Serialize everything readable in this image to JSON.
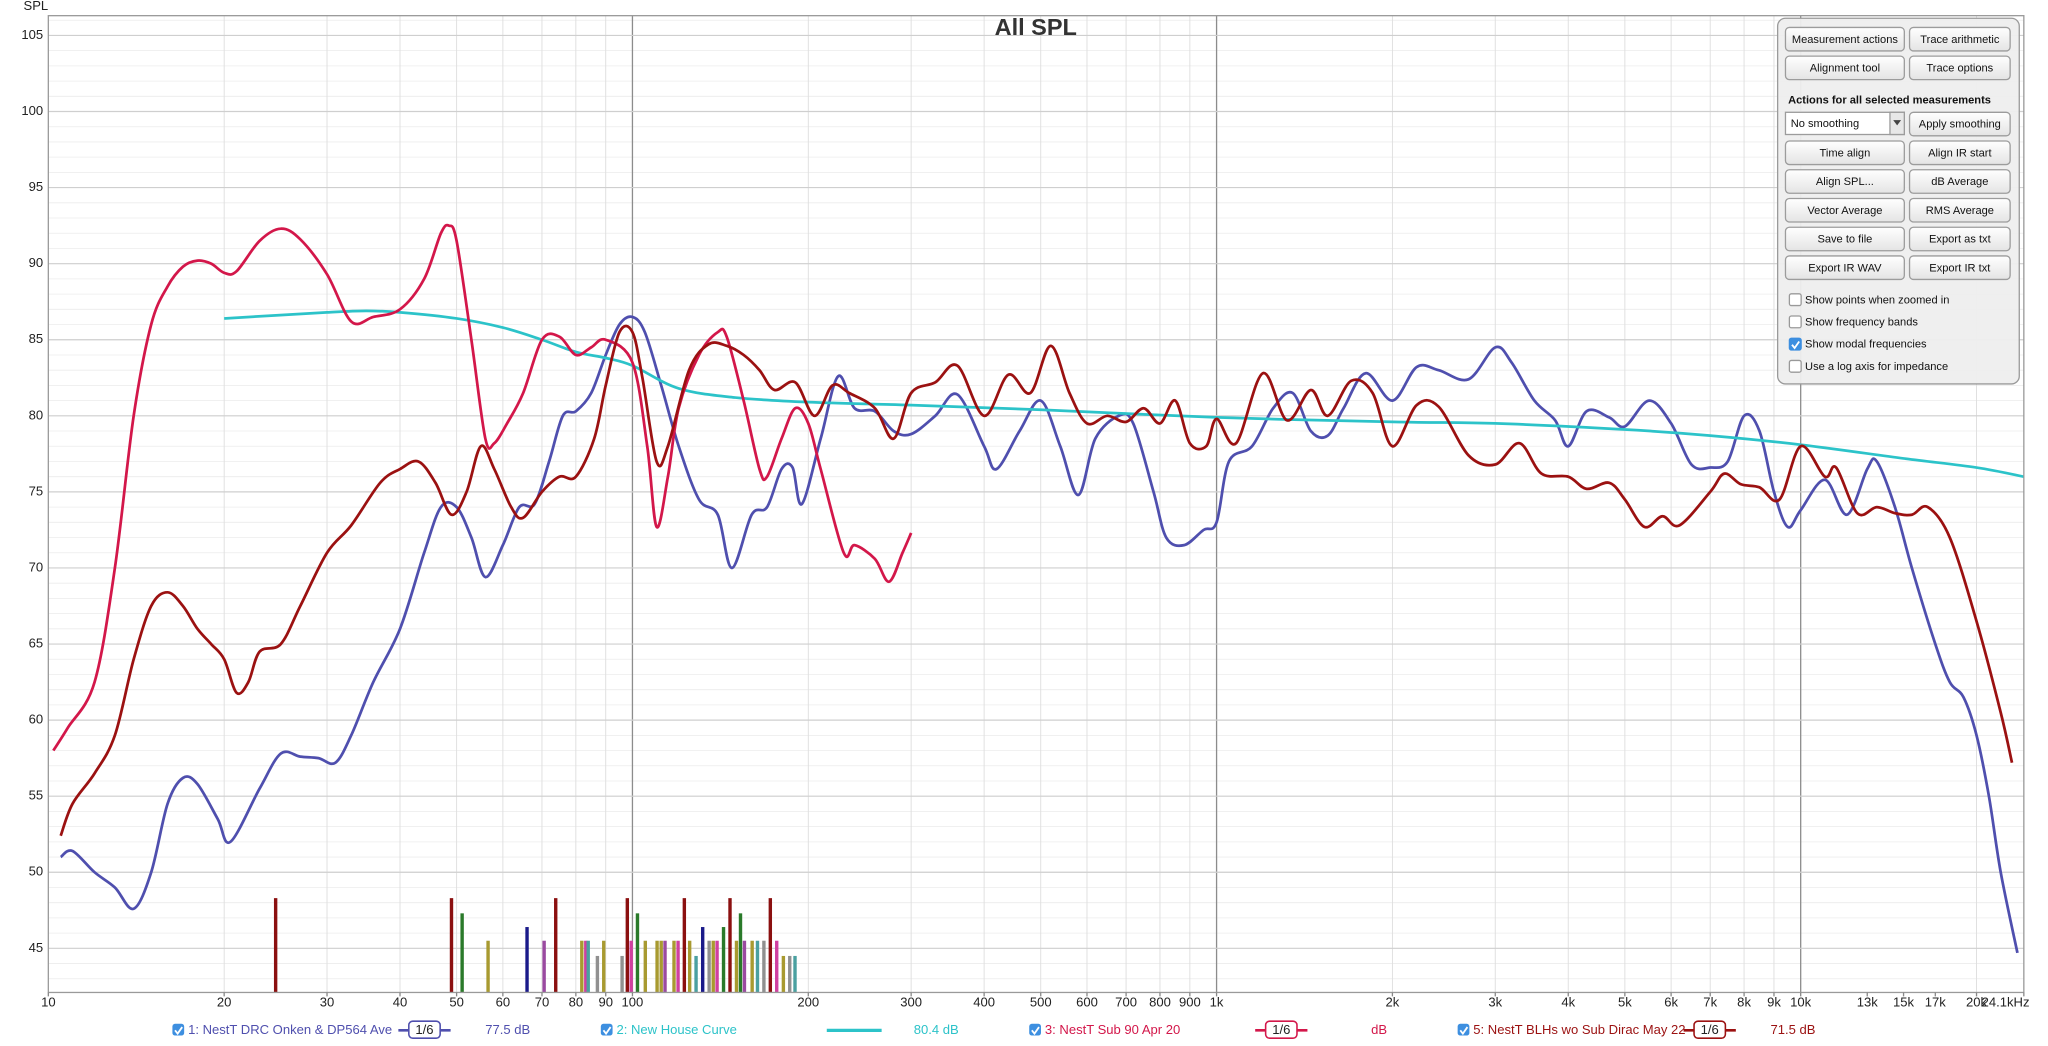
{
  "chart_data": {
    "type": "line",
    "title": "All SPL",
    "y_label": "SPL",
    "log_x": true,
    "grid": true,
    "xlim": [
      10,
      24100
    ],
    "ylim": [
      42.1,
      106.3
    ],
    "xticks": [
      10,
      20,
      30,
      40,
      50,
      60,
      70,
      80,
      90,
      100,
      200,
      300,
      400,
      500,
      600,
      700,
      800,
      900,
      {
        "value": 1000,
        "label": "1k"
      },
      {
        "value": 2000,
        "label": "2k"
      },
      {
        "value": 3000,
        "label": "3k"
      },
      {
        "value": 4000,
        "label": "4k"
      },
      {
        "value": 5000,
        "label": "5k"
      },
      {
        "value": 6000,
        "label": "6k"
      },
      {
        "value": 7000,
        "label": "7k"
      },
      {
        "value": 8000,
        "label": "8k"
      },
      {
        "value": 9000,
        "label": "9k"
      },
      {
        "value": 10000,
        "label": "10k"
      },
      {
        "value": 13000,
        "label": "13k"
      },
      {
        "value": 15000,
        "label": "15k"
      },
      {
        "value": 17000,
        "label": "17k"
      },
      {
        "value": 20000,
        "label": "20k"
      },
      {
        "value": 24100,
        "label": "24.1kHz"
      }
    ],
    "yticks": [
      45,
      50,
      55,
      60,
      65,
      70,
      75,
      80,
      85,
      90,
      95,
      100,
      105
    ],
    "series": [
      {
        "name": "1: NestT DRC Onken & DP564 Ave",
        "color": "#4f4fae",
        "smoothing": "1/6",
        "legend_value": "77.5 dB",
        "x": [
          10.5,
          11,
          12,
          13,
          14,
          15,
          16,
          17,
          18,
          19.5,
          20.5,
          23,
          25,
          27,
          29,
          31,
          33,
          36,
          40,
          44,
          47,
          50,
          53,
          56,
          60,
          64,
          68,
          72,
          76,
          80,
          85,
          90,
          95,
          100,
          105,
          112,
          120,
          130,
          140,
          148,
          160,
          170,
          180,
          188,
          195,
          210,
          225,
          240,
          260,
          280,
          300,
          330,
          360,
          400,
          420,
          460,
          500,
          540,
          580,
          620,
          680,
          720,
          780,
          820,
          880,
          950,
          1000,
          1050,
          1150,
          1250,
          1350,
          1450,
          1550,
          1650,
          1800,
          2000,
          2200,
          2400,
          2700,
          3000,
          3200,
          3500,
          3800,
          4000,
          4300,
          4700,
          5000,
          5500,
          6000,
          6500,
          7000,
          7500,
          8000,
          8500,
          9000,
          9500,
          10000,
          11000,
          12000,
          13000,
          13500,
          14500,
          15500,
          17000,
          18000,
          19000,
          20000,
          21000,
          22000,
          23500
        ],
        "values": [
          51,
          51.4,
          50,
          49,
          47.6,
          50,
          54.5,
          56.2,
          55.8,
          53.5,
          52,
          55.5,
          57.8,
          57.6,
          57.5,
          57.2,
          59,
          62.5,
          66,
          71,
          74,
          74,
          72,
          69.4,
          71.5,
          74,
          74.2,
          77,
          80,
          80.3,
          81.5,
          84,
          86,
          86.5,
          85.5,
          82,
          78,
          74.5,
          73.5,
          70,
          73.5,
          74,
          76.5,
          76.6,
          74.2,
          78.5,
          82.6,
          80.5,
          80.3,
          79,
          78.8,
          80,
          81.4,
          78,
          76.5,
          79,
          81,
          78,
          74.8,
          78.5,
          80,
          79.5,
          75,
          72,
          71.5,
          72.5,
          73,
          77,
          78,
          80.5,
          81.5,
          79,
          78.7,
          80.5,
          82.8,
          81,
          83.2,
          83,
          82.4,
          84.5,
          83.5,
          81,
          79.7,
          78,
          80.3,
          79.9,
          79.3,
          81,
          79.5,
          76.8,
          76.6,
          77,
          80,
          79,
          75,
          72.7,
          73.8,
          75.8,
          73.5,
          76.5,
          77,
          74,
          70,
          65,
          62.5,
          61.5,
          59,
          55,
          50,
          44.7
        ]
      },
      {
        "name": "2: New House Curve",
        "color": "#2cc3c9",
        "legend_value": "80.4 dB",
        "x": [
          20,
          30,
          35,
          40,
          50,
          60,
          70,
          80,
          90,
          100,
          120,
          150,
          200,
          300,
          500,
          1000,
          2000,
          3000,
          5000,
          7000,
          10000,
          15000,
          20000,
          24100
        ],
        "values": [
          86.4,
          86.8,
          86.9,
          86.8,
          86.4,
          85.8,
          85,
          84.2,
          83.8,
          83.3,
          81.8,
          81.2,
          80.9,
          80.7,
          80.4,
          79.9,
          79.6,
          79.5,
          79.1,
          78.7,
          78.1,
          77.2,
          76.6,
          76
        ]
      },
      {
        "name": "3: NestT Sub 90 Apr 20",
        "color": "#d3174a",
        "smoothing": "1/6",
        "legend_value": "dB",
        "x": [
          10.2,
          10.8,
          12,
          13,
          14,
          15,
          16,
          17,
          18,
          19,
          20,
          21,
          23,
          25,
          27,
          30,
          33,
          36,
          40,
          44,
          47,
          48.5,
          50,
          53,
          56,
          58,
          61,
          65,
          70,
          75,
          80,
          85,
          90,
          100,
          106,
          110,
          115,
          120,
          130,
          140,
          145,
          155,
          165,
          170,
          180,
          190,
          200,
          210,
          230,
          240,
          260,
          275,
          290,
          300
        ],
        "values": [
          58,
          59.5,
          62.5,
          70,
          80,
          86,
          88.5,
          89.8,
          90.2,
          90,
          89.4,
          89.5,
          91.5,
          92.3,
          91.6,
          89.3,
          86.2,
          86.5,
          87,
          89,
          92,
          92.5,
          91.5,
          85,
          78.5,
          78.2,
          79.5,
          81.5,
          85,
          85.2,
          84,
          84.5,
          85,
          83.5,
          78,
          72.7,
          76,
          80.5,
          84,
          85.5,
          85.2,
          81,
          76.5,
          76,
          78.5,
          80.5,
          79.5,
          76.5,
          71,
          71.5,
          70.6,
          69.1,
          71,
          72.3
        ]
      },
      {
        "name": "5: NestT BLHs wo Sub Dirac May 22",
        "color": "#9b1111",
        "smoothing": "1/6",
        "legend_value": "71.5 dB",
        "x": [
          10.5,
          11,
          12,
          13,
          14,
          15,
          16,
          17,
          18,
          19,
          20,
          21,
          22,
          23,
          25,
          27,
          30,
          33,
          37,
          40,
          43,
          46,
          49,
          52,
          55,
          58,
          62,
          65,
          70,
          75,
          80,
          86,
          90,
          95,
          100,
          104,
          110,
          115,
          125,
          135,
          145,
          155,
          165,
          175,
          190,
          205,
          220,
          235,
          260,
          280,
          300,
          330,
          360,
          400,
          440,
          480,
          520,
          560,
          600,
          650,
          700,
          750,
          800,
          850,
          900,
          960,
          1000,
          1080,
          1200,
          1320,
          1450,
          1550,
          1700,
          1850,
          2000,
          2200,
          2400,
          2700,
          3000,
          3300,
          3600,
          4000,
          4300,
          4700,
          5000,
          5400,
          5800,
          6200,
          7000,
          7400,
          7900,
          8500,
          9200,
          10000,
          11000,
          11500,
          12500,
          13500,
          14500,
          15500,
          16500,
          18000,
          20000,
          22000,
          23000
        ],
        "values": [
          52.4,
          54.5,
          56.5,
          59,
          64,
          67.5,
          68.4,
          67.5,
          66,
          65,
          64,
          61.8,
          62.5,
          64.5,
          65,
          67.5,
          71,
          72.8,
          75.6,
          76.5,
          77,
          75.6,
          73.5,
          75,
          78,
          76.5,
          74,
          73.3,
          75,
          76,
          76,
          78.5,
          82,
          85.5,
          85.5,
          82.5,
          77,
          78,
          83,
          84.7,
          84.6,
          84,
          83,
          81.7,
          82.2,
          80,
          82,
          81.5,
          80.5,
          78.5,
          81.5,
          82.2,
          83.3,
          80,
          82.7,
          81.5,
          84.6,
          81.5,
          79.5,
          80,
          79.6,
          80.5,
          79.5,
          81,
          78.2,
          78,
          79.8,
          78.2,
          82.8,
          79.7,
          81.7,
          80,
          82.3,
          81.5,
          78,
          80.7,
          80.6,
          77.4,
          76.8,
          78.2,
          76.2,
          76,
          75.2,
          75.6,
          74.5,
          72.7,
          73.4,
          72.8,
          75,
          76.2,
          75.5,
          75.3,
          74.5,
          78,
          76,
          76.6,
          73.6,
          74,
          73.6,
          73.5,
          74,
          72,
          66.5,
          60.5,
          57.2
        ]
      }
    ],
    "modal_frequencies": {
      "x": [
        24.5,
        49,
        51.1,
        56.6,
        66,
        70.6,
        73.9,
        81.9,
        83.2,
        84,
        87.1,
        89.3,
        96,
        98,
        99.5,
        102,
        105.2,
        110.2,
        112,
        113.7,
        117.8,
        119.7,
        122.7,
        125.3,
        128.5,
        131.9,
        135.3,
        137.5,
        139.6,
        143.2,
        146.9,
        150.7,
        153.1,
        155.5,
        160.3,
        163.7,
        167.9,
        172.2,
        176.6,
        181.3,
        185.9,
        189.8
      ],
      "values": [
        48.3,
        48.3,
        47.3,
        45.5,
        46.4,
        45.5,
        48.3,
        45.5,
        45.5,
        45.5,
        44.5,
        45.5,
        44.5,
        48.3,
        45.5,
        47.3,
        45.5,
        45.5,
        45.5,
        45.5,
        45.5,
        45.5,
        48.3,
        45.5,
        44.5,
        46.4,
        45.5,
        45.5,
        45.5,
        46.4,
        48.3,
        45.5,
        47.3,
        45.5,
        45.5,
        45.5,
        45.5,
        48.3,
        45.5,
        44.5,
        44.5,
        44.5
      ],
      "colors": [
        "#8b1010",
        "#8b1010",
        "#2a7a2a",
        "#a89a30",
        "#1a1a8a",
        "#9a4aa0",
        "#8b1010",
        "#a89a30",
        "#d040a0",
        "#4aa0a0",
        "#909090",
        "#a89a30",
        "#909090",
        "#8b1010",
        "#d040a0",
        "#2a7a2a",
        "#a89a30",
        "#a89a30",
        "#a89a30",
        "#9a4aa0",
        "#a89a30",
        "#d040a0",
        "#8b1010",
        "#a89a30",
        "#4aa0a0",
        "#1a1a8a",
        "#909090",
        "#a89a30",
        "#d040a0",
        "#2a7a2a",
        "#8b1010",
        "#a89a30",
        "#2a7a2a",
        "#9a4aa0",
        "#a89a30",
        "#4aa0a0",
        "#909090",
        "#8b1010",
        "#d040a0",
        "#a89a30",
        "#909090",
        "#4aa0a0"
      ]
    }
  },
  "panel": {
    "button_rows": [
      [
        "Measurement actions",
        "Trace arithmetic"
      ],
      [
        "Alignment tool",
        "Trace options"
      ]
    ],
    "section_title": "Actions for all selected measurements",
    "smoothing_select": "No  smoothing",
    "apply_button": "Apply smoothing",
    "action_rows": [
      [
        "Time align",
        "Align IR start"
      ],
      [
        "Align SPL...",
        "dB Average"
      ],
      [
        "Vector Average",
        "RMS Average"
      ],
      [
        "Save to file",
        "Export as txt"
      ],
      [
        "Export IR WAV",
        "Export IR txt"
      ]
    ],
    "checkboxes": [
      {
        "label": "Show points when zoomed in",
        "checked": false
      },
      {
        "label": "Show frequency bands",
        "checked": false
      },
      {
        "label": "Show modal frequencies",
        "checked": true
      },
      {
        "label": "Use a log axis for impedance",
        "checked": false
      }
    ]
  }
}
